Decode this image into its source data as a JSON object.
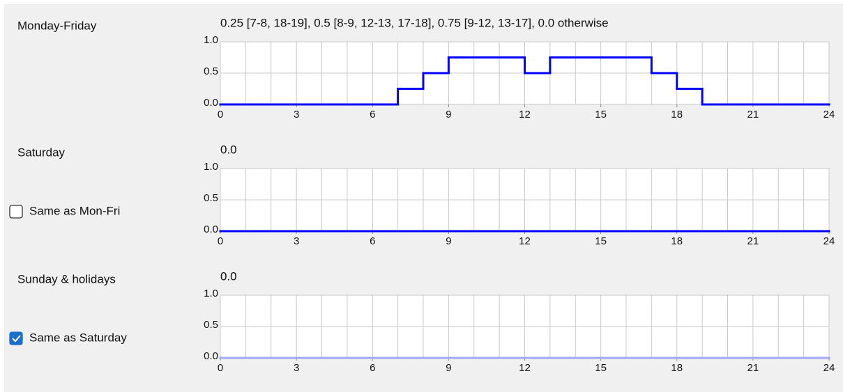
{
  "panels": [
    {
      "label": "Monday-Friday",
      "summary": "0.25 [7-8, 18-19], 0.5 [8-9, 12-13, 17-18], 0.75 [9-12, 13-17], 0.0 otherwise",
      "chart": {
        "type": "step",
        "color": "#0000ff",
        "x": [
          0,
          1,
          2,
          3,
          4,
          5,
          6,
          7,
          8,
          9,
          10,
          11,
          12,
          13,
          14,
          15,
          16,
          17,
          18,
          19,
          20,
          21,
          22,
          23
        ],
        "values": [
          0,
          0,
          0,
          0,
          0,
          0,
          0,
          0.25,
          0.5,
          0.75,
          0.75,
          0.75,
          0.5,
          0.75,
          0.75,
          0.75,
          0.75,
          0.5,
          0.25,
          0,
          0,
          0,
          0,
          0
        ],
        "xlim": [
          0,
          24
        ],
        "ylim": [
          0,
          1
        ],
        "xticks": [
          0,
          3,
          6,
          9,
          12,
          15,
          18,
          21,
          24
        ],
        "yticks": [
          {
            "value": 0,
            "label": "0.0"
          },
          0.5,
          {
            "value": 1,
            "label": "1.0"
          }
        ],
        "grid": true
      }
    },
    {
      "label": "Saturday",
      "summary": "0.0",
      "checkbox": {
        "label": "Same as Mon-Fri",
        "checked": false
      },
      "chart": {
        "type": "step",
        "color": "#0000ff",
        "x": [
          0,
          1,
          2,
          3,
          4,
          5,
          6,
          7,
          8,
          9,
          10,
          11,
          12,
          13,
          14,
          15,
          16,
          17,
          18,
          19,
          20,
          21,
          22,
          23
        ],
        "values": [
          0,
          0,
          0,
          0,
          0,
          0,
          0,
          0,
          0,
          0,
          0,
          0,
          0,
          0,
          0,
          0,
          0,
          0,
          0,
          0,
          0,
          0,
          0,
          0
        ],
        "xlim": [
          0,
          24
        ],
        "ylim": [
          0,
          1
        ],
        "xticks": [
          0,
          3,
          6,
          9,
          12,
          15,
          18,
          21,
          24
        ],
        "yticks": [
          {
            "value": 0,
            "label": "0.0"
          },
          0.5,
          {
            "value": 1,
            "label": "1.0"
          }
        ],
        "grid": true
      }
    },
    {
      "label": "Sunday & holidays",
      "summary": "0.0",
      "checkbox": {
        "label": "Same as Saturday",
        "checked": true
      },
      "chart": {
        "type": "step",
        "color": "#a3a8f5",
        "x": [
          0,
          1,
          2,
          3,
          4,
          5,
          6,
          7,
          8,
          9,
          10,
          11,
          12,
          13,
          14,
          15,
          16,
          17,
          18,
          19,
          20,
          21,
          22,
          23
        ],
        "values": [
          0,
          0,
          0,
          0,
          0,
          0,
          0,
          0,
          0,
          0,
          0,
          0,
          0,
          0,
          0,
          0,
          0,
          0,
          0,
          0,
          0,
          0,
          0,
          0
        ],
        "xlim": [
          0,
          24
        ],
        "ylim": [
          0,
          1
        ],
        "xticks": [
          0,
          3,
          6,
          9,
          12,
          15,
          18,
          21,
          24
        ],
        "yticks": [
          {
            "value": 0,
            "label": "0.0"
          },
          0.5,
          {
            "value": 1,
            "label": "1.0"
          }
        ],
        "grid": true
      }
    }
  ]
}
